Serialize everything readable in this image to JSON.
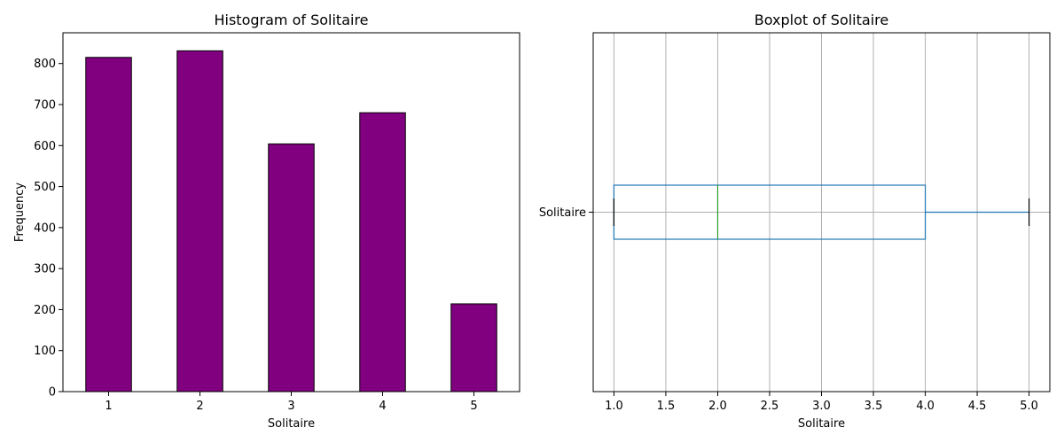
{
  "chart_data": [
    {
      "type": "bar",
      "title": "Histogram of Solitaire",
      "xlabel": "Solitaire",
      "ylabel": "Frequency",
      "categories": [
        "1",
        "2",
        "3",
        "4",
        "5"
      ],
      "values": [
        815,
        831,
        604,
        680,
        214
      ],
      "ylim": [
        0,
        875
      ],
      "yticks": [
        0,
        100,
        200,
        300,
        400,
        500,
        600,
        700,
        800
      ],
      "bar_color": "#800080",
      "edge_color": "#000000",
      "grid": false
    },
    {
      "type": "boxplot",
      "title": "Boxplot of Solitaire",
      "xlabel": "Solitaire",
      "ylabel": "",
      "category": "Solitaire",
      "orientation": "horizontal",
      "min": 1.0,
      "q1": 1.0,
      "median": 2.0,
      "q3": 4.0,
      "max": 5.0,
      "xlim": [
        0.8,
        5.2
      ],
      "xticks": [
        "1.0",
        "1.5",
        "2.0",
        "2.5",
        "3.0",
        "3.5",
        "4.0",
        "4.5",
        "5.0"
      ],
      "box_color": "#1f77b4",
      "median_color": "#2ca02c",
      "whisker_color": "#1f77b4",
      "cap_color": "#000000",
      "grid": true
    }
  ]
}
